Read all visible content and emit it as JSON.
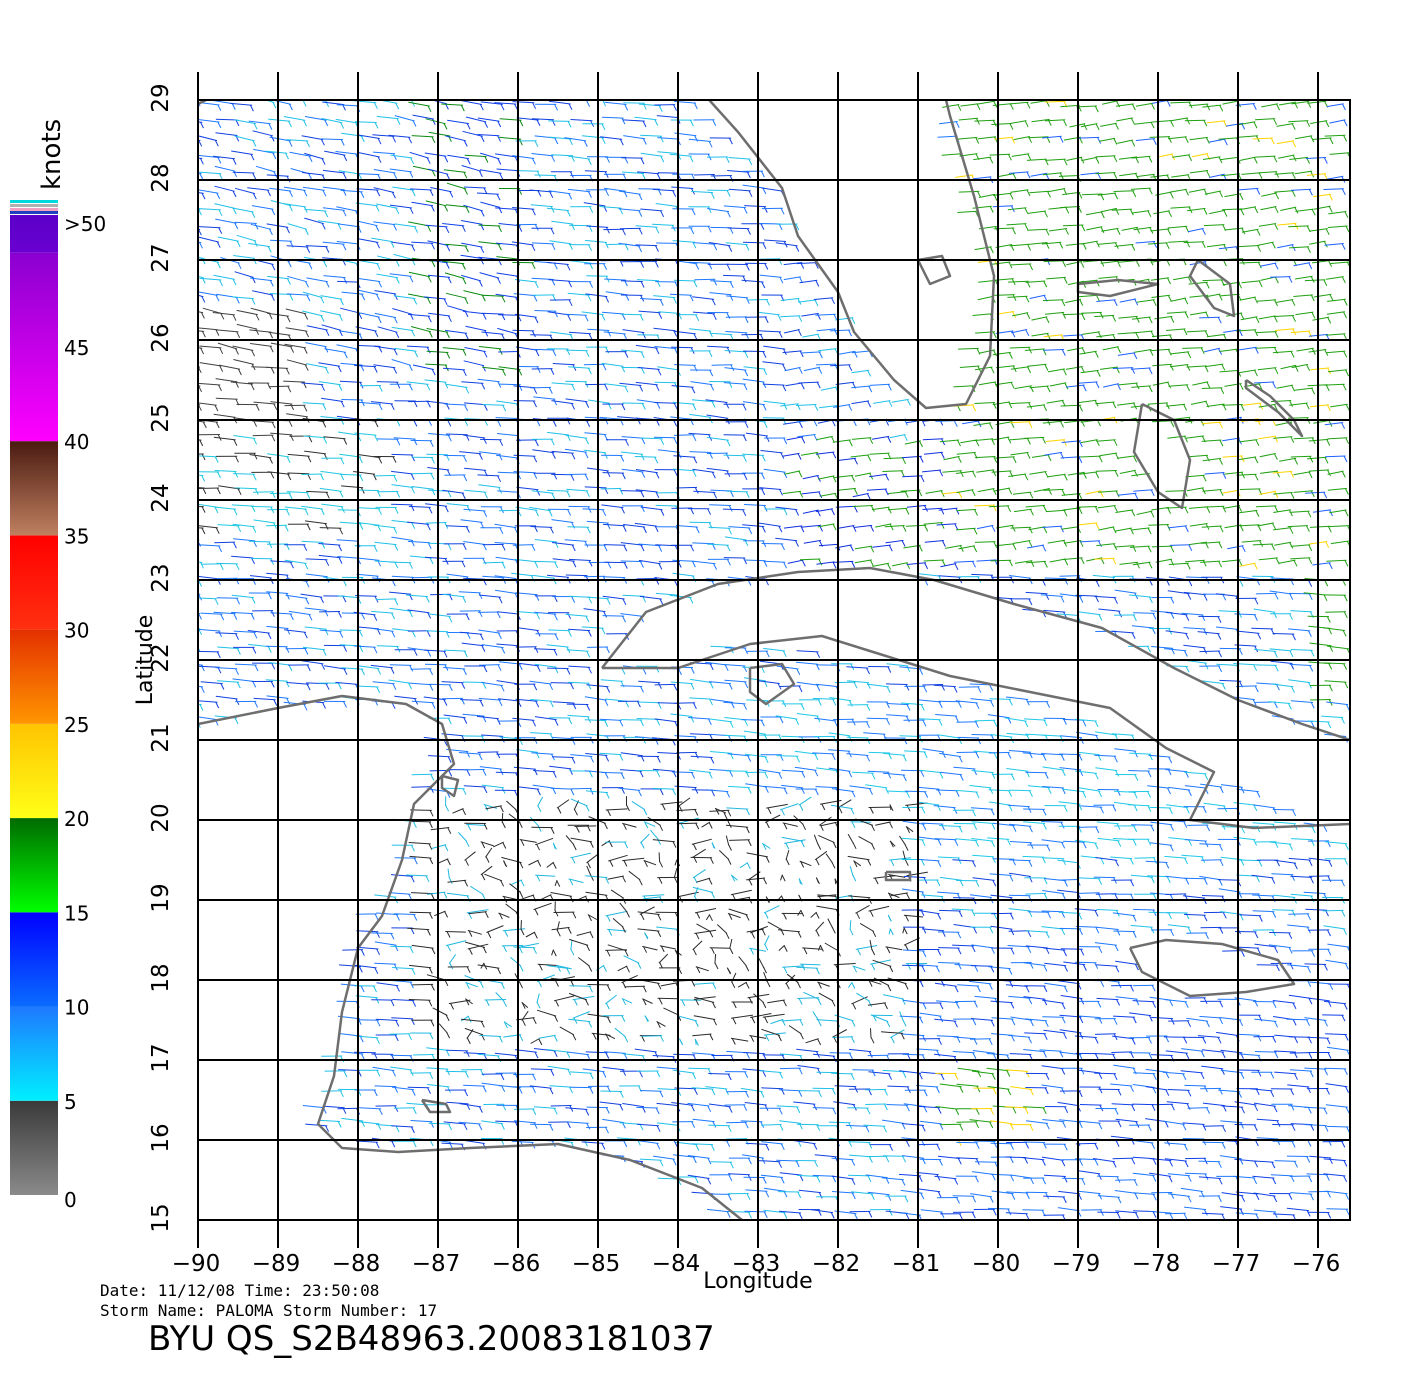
{
  "axes": {
    "xlabel": "Longitude",
    "ylabel": "Latitude",
    "x_ticks": [
      -90,
      -89,
      -88,
      -87,
      -86,
      -85,
      -84,
      -83,
      -82,
      -81,
      -80,
      -79,
      -78,
      -77,
      -76
    ],
    "y_ticks": [
      15,
      16,
      17,
      18,
      19,
      20,
      21,
      22,
      23,
      24,
      25,
      26,
      27,
      28,
      29
    ],
    "xlim": [
      -90,
      -75.6
    ],
    "ylim": [
      15,
      29
    ]
  },
  "colorbar": {
    "title": "knots",
    "bands": [
      {
        "from": 0,
        "to": 5,
        "top": "#3a3a3a",
        "bottom": "#8a8a8a"
      },
      {
        "from": 5,
        "to": 10,
        "top": "#1e78ff",
        "bottom": "#00f0ff"
      },
      {
        "from": 10,
        "to": 15,
        "top": "#0000ff",
        "bottom": "#0a6cff"
      },
      {
        "from": 15,
        "to": 20,
        "top": "#006b00",
        "bottom": "#00ff00"
      },
      {
        "from": 20,
        "to": 25,
        "top": "#ffc400",
        "bottom": "#ffff18"
      },
      {
        "from": 25,
        "to": 30,
        "top": "#e43000",
        "bottom": "#ff9600"
      },
      {
        "from": 30,
        "to": 35,
        "top": "#ff0000",
        "bottom": "#ff3010"
      },
      {
        "from": 35,
        "to": 40,
        "top": "#4a1a10",
        "bottom": "#c08060"
      },
      {
        "from": 40,
        "to": 50,
        "top": "#8a00d0",
        "bottom": "#ff00ff"
      },
      {
        "from": 50,
        "to": 55,
        "top": "#5a00c8",
        "bottom": "#6a00d0"
      }
    ],
    "labels": [
      "0",
      "5",
      "10",
      "15",
      "20",
      "25",
      "30",
      "35",
      "40",
      "45",
      ">50"
    ]
  },
  "info": {
    "date_line": "Date: 11/12/08   Time: 23:50:08",
    "storm_line": "Storm Name: PALOMA   Storm Number: 17",
    "product_id": "BYU QS_S2B48963.20083181037"
  },
  "colors": {
    "coast": "#6e6e6e",
    "grid": "#000000"
  }
}
